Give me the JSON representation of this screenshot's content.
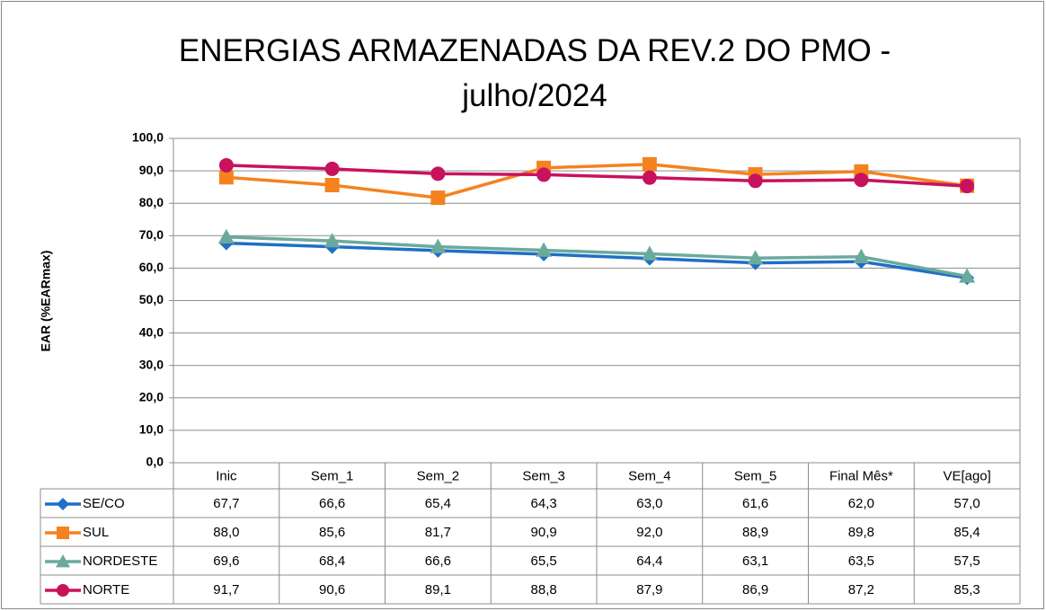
{
  "chart_data": {
    "type": "line",
    "title": "ENERGIAS ARMAZENADAS DA REV.2 DO PMO - julho/2024",
    "y_label": "EAR (%EARmax)",
    "categories": [
      "Inic",
      "Sem_1",
      "Sem_2",
      "Sem_3",
      "Sem_4",
      "Sem_5",
      "Final Mês*",
      "VE[ago]"
    ],
    "series": [
      {
        "name": "SE/CO",
        "color": "#1f6fc5",
        "marker": "diamond",
        "values": [
          67.7,
          66.6,
          65.4,
          64.3,
          63.0,
          61.6,
          62.0,
          57.0
        ],
        "value_labels": [
          "67,7",
          "66,6",
          "65,4",
          "64,3",
          "63,0",
          "61,6",
          "62,0",
          "57,0"
        ]
      },
      {
        "name": "SUL",
        "color": "#f5821f",
        "marker": "square",
        "values": [
          88.0,
          85.6,
          81.7,
          90.9,
          92.0,
          88.9,
          89.8,
          85.4
        ],
        "value_labels": [
          "88,0",
          "85,6",
          "81,7",
          "90,9",
          "92,0",
          "88,9",
          "89,8",
          "85,4"
        ]
      },
      {
        "name": "NORDESTE",
        "color": "#6aaa9c",
        "marker": "triangle",
        "values": [
          69.6,
          68.4,
          66.6,
          65.5,
          64.4,
          63.1,
          63.5,
          57.5
        ],
        "value_labels": [
          "69,6",
          "68,4",
          "66,6",
          "65,5",
          "64,4",
          "63,1",
          "63,5",
          "57,5"
        ]
      },
      {
        "name": "NORTE",
        "color": "#c8125e",
        "marker": "circle",
        "values": [
          91.7,
          90.6,
          89.1,
          88.8,
          87.9,
          86.9,
          87.2,
          85.3
        ],
        "value_labels": [
          "91,7",
          "90,6",
          "89,1",
          "88,8",
          "87,9",
          "86,9",
          "87,2",
          "85,3"
        ]
      }
    ],
    "ylim": [
      0,
      100
    ],
    "yticks": [
      {
        "value": 0,
        "label": "0,0"
      },
      {
        "value": 10,
        "label": "10,0"
      },
      {
        "value": 20,
        "label": "20,0"
      },
      {
        "value": 30,
        "label": "30,0"
      },
      {
        "value": 40,
        "label": "40,0"
      },
      {
        "value": 50,
        "label": "50,0"
      },
      {
        "value": 60,
        "label": "60,0"
      },
      {
        "value": 70,
        "label": "70,0"
      },
      {
        "value": 80,
        "label": "80,0"
      },
      {
        "value": 90,
        "label": "90,0"
      },
      {
        "value": 100,
        "label": "100,0"
      }
    ],
    "grid": true
  }
}
